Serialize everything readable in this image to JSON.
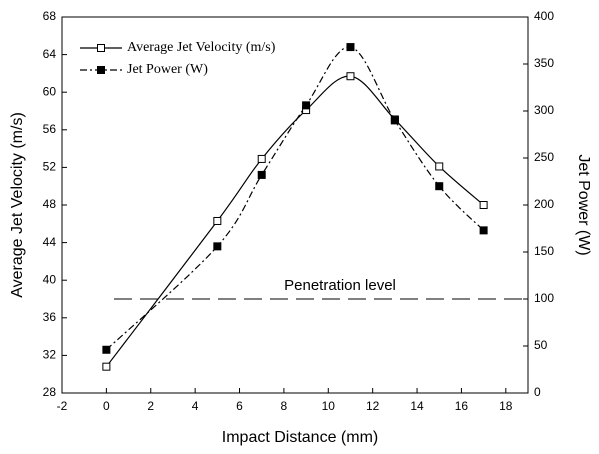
{
  "chart_data": {
    "type": "line",
    "x_label": "Impact Distance (mm)",
    "y_label": "Average Jet Velocity (m/s)",
    "y2_label": "Jet Power (W)",
    "x": [
      0,
      5,
      7,
      9,
      11,
      13,
      15,
      17
    ],
    "series": [
      {
        "name": "Average Jet Velocity (m/s)",
        "color": "#000000",
        "marker": "open-square",
        "line_style": "solid",
        "axis": "y",
        "values": [
          30.8,
          46.3,
          52.9,
          58.1,
          61.7,
          57.1,
          52.1,
          48.0
        ]
      },
      {
        "name": "Jet Power (W)",
        "color": "#000000",
        "marker": "filled-square",
        "line_style": "dash-dot",
        "axis": "y2",
        "values": [
          46,
          156,
          232,
          306,
          368,
          290,
          220,
          173
        ]
      }
    ],
    "reference_line": {
      "value": 100,
      "axis": "y2",
      "label": "Penetration level"
    },
    "xlim": [
      -2,
      19
    ],
    "xticks": [
      -2,
      0,
      2,
      4,
      6,
      8,
      10,
      12,
      14,
      16,
      18
    ],
    "ylim": [
      28,
      68
    ],
    "yticks": [
      28,
      32,
      36,
      40,
      44,
      48,
      52,
      56,
      60,
      64,
      68
    ],
    "y2lim": [
      0,
      400
    ],
    "y2ticks": [
      0,
      50,
      100,
      150,
      200,
      250,
      300,
      350,
      400
    ],
    "legend": "top-left",
    "grid": false
  }
}
